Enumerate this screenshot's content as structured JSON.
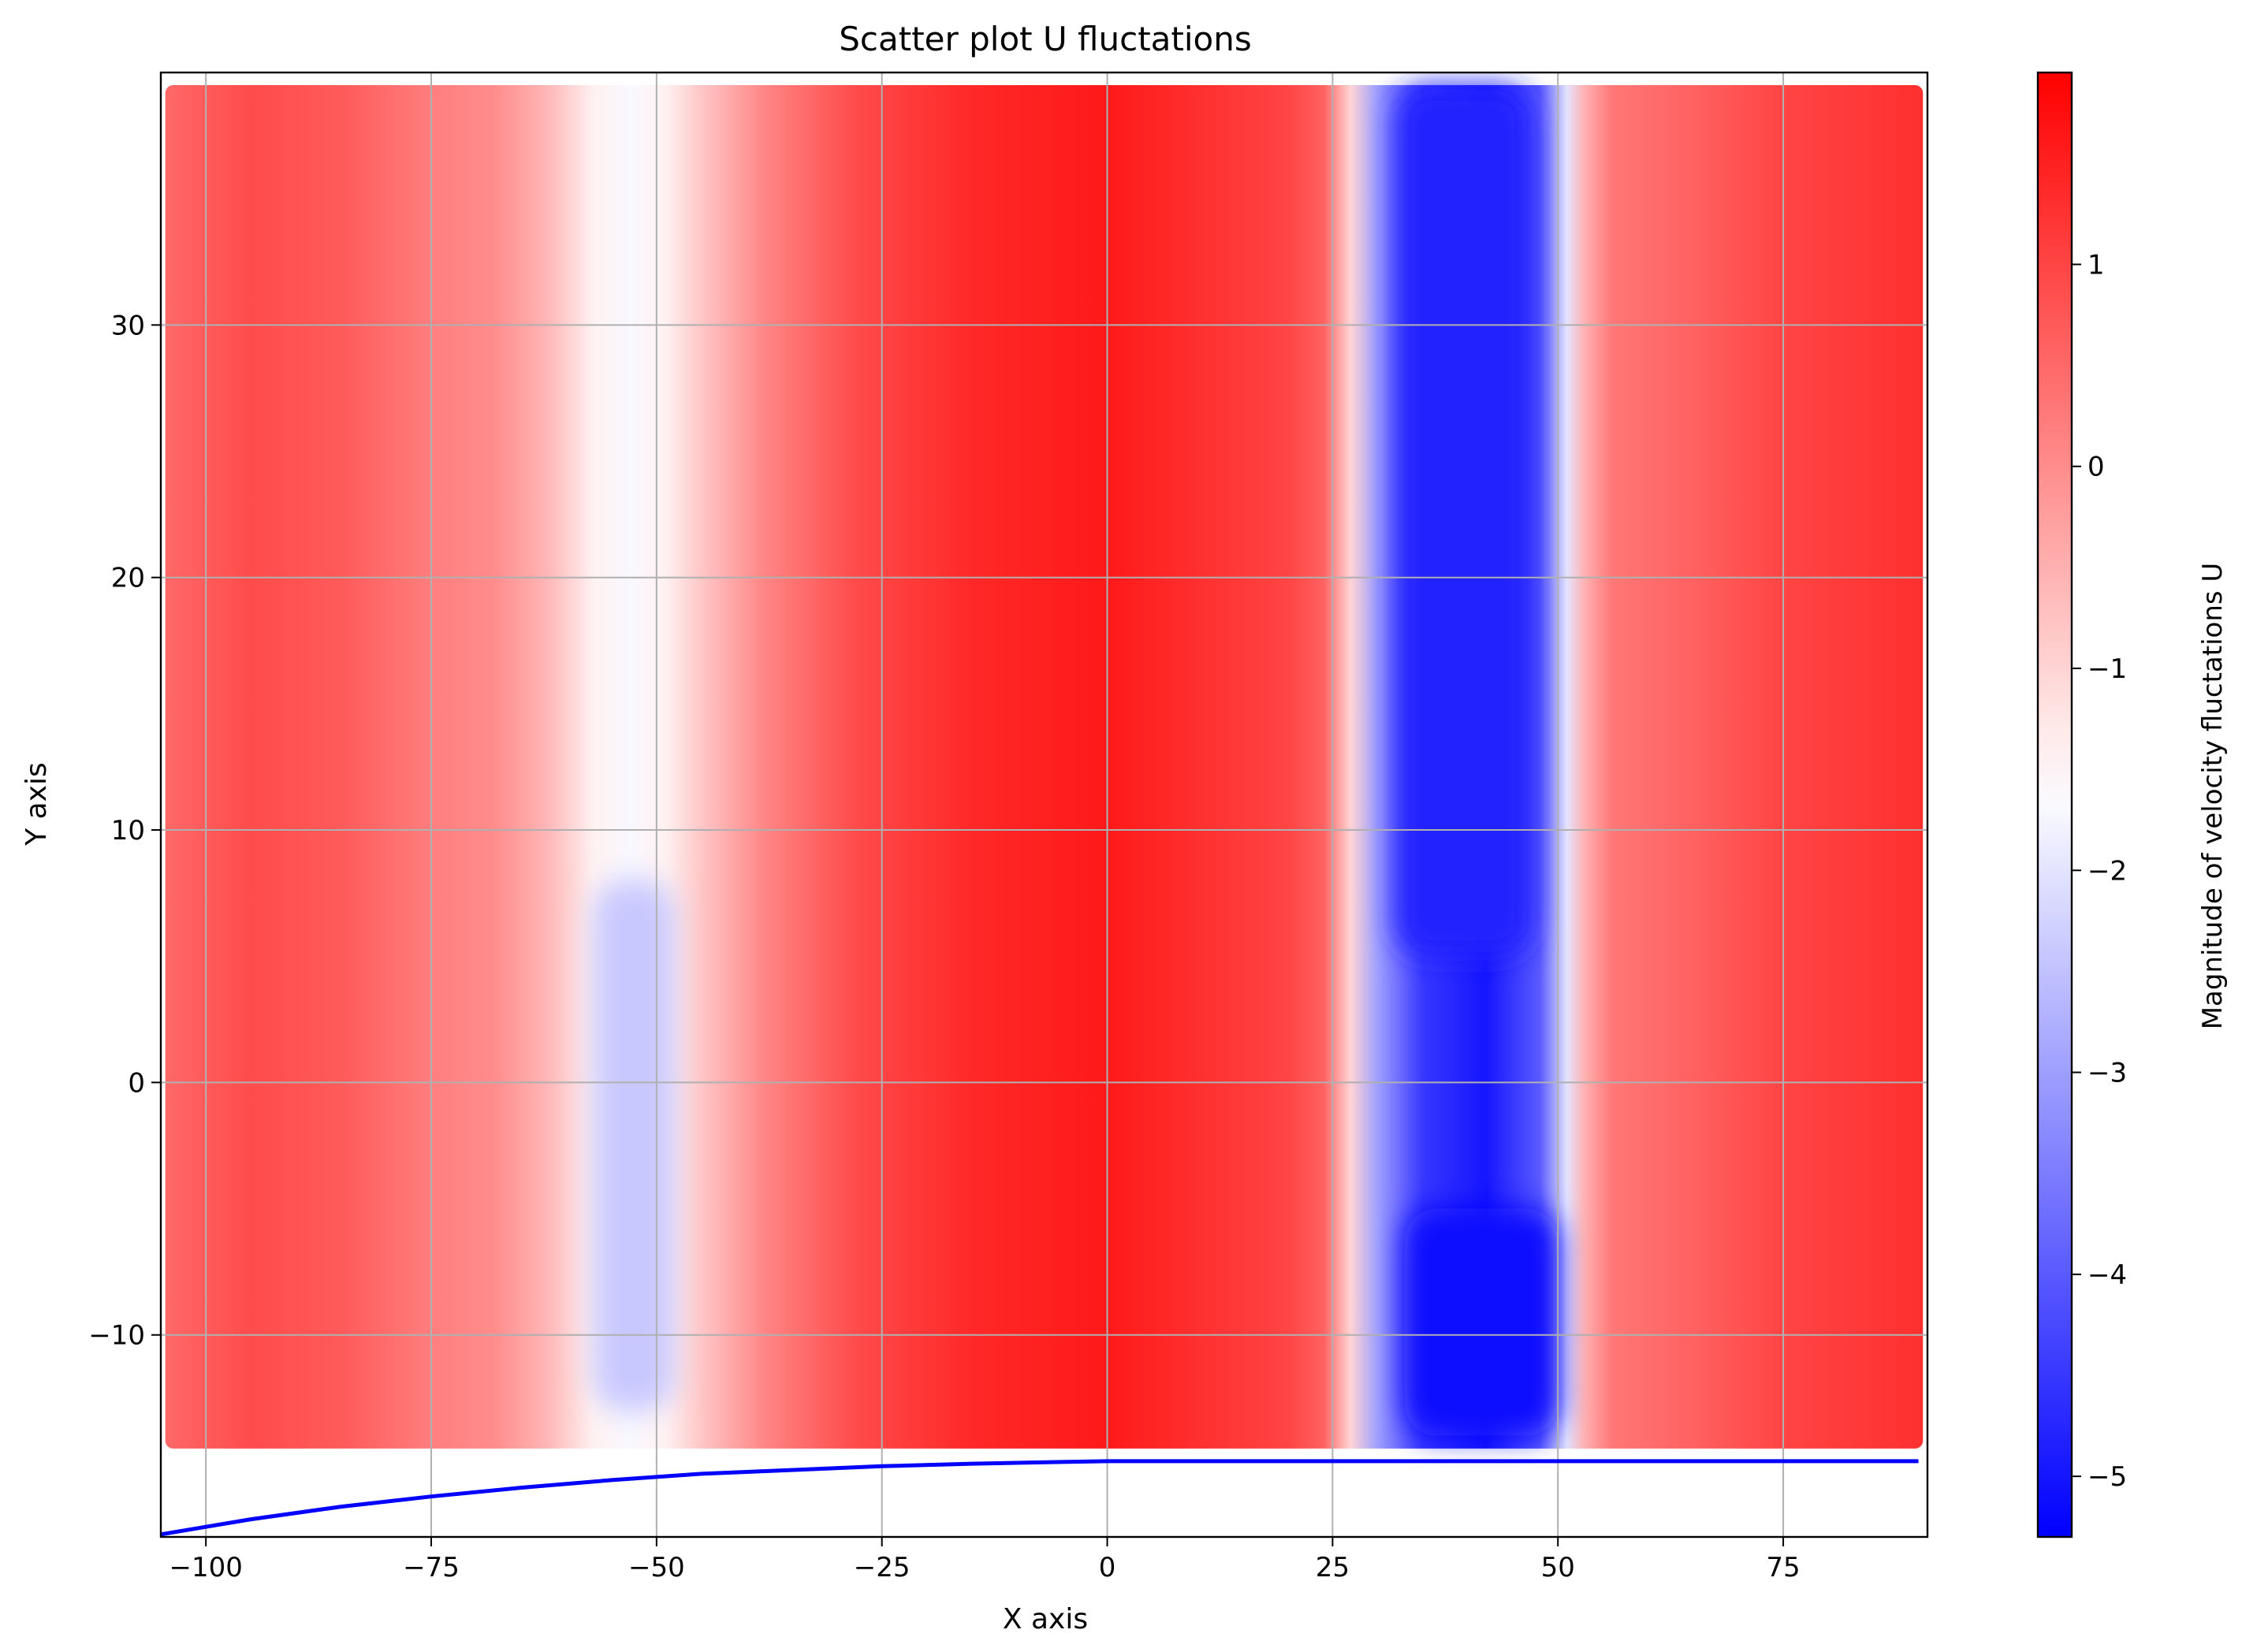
{
  "chart_data": {
    "type": "scatter",
    "title": "Scatter plot U fluctations",
    "xlabel": "X axis",
    "ylabel": "Y axis",
    "xlim": [
      -105,
      91
    ],
    "ylim": [
      -18,
      40
    ],
    "grid": true,
    "xticks": [
      -100,
      -75,
      -50,
      -25,
      0,
      25,
      50,
      75
    ],
    "xtick_labels": [
      "−100",
      "−75",
      "−50",
      "−25",
      "0",
      "25",
      "50",
      "75"
    ],
    "yticks": [
      -10,
      0,
      10,
      20,
      30
    ],
    "ytick_labels": [
      "−10",
      "0",
      "10",
      "20",
      "30"
    ],
    "point_region": {
      "x": [
        -104.5,
        90.5
      ],
      "y": [
        -14.5,
        39.5
      ]
    },
    "colormap": "bwr",
    "colors": {
      "low": "#0000ff",
      "mid": "#ffffff",
      "high": "#ff0000",
      "curve": "#0000ff",
      "grid": "#b0b0b0"
    },
    "colorbar": {
      "label": "Magnitude of velocity fluctations U",
      "range": [
        -5.3,
        1.95
      ],
      "ticks": [
        1,
        0,
        -1,
        -2,
        -3,
        -4,
        -5
      ],
      "tick_labels": [
        "1",
        "0",
        "−1",
        "−2",
        "−3",
        "−4",
        "−5"
      ]
    },
    "value_profile_by_x": [
      {
        "x": -105,
        "u": 0.5
      },
      {
        "x": -95,
        "u": 0.9
      },
      {
        "x": -85,
        "u": 0.7
      },
      {
        "x": -75,
        "u": 0.2
      },
      {
        "x": -68,
        "u": 0.0
      },
      {
        "x": -62,
        "u": -0.6
      },
      {
        "x": -57,
        "u": -1.4
      },
      {
        "x": -53,
        "u": -1.7
      },
      {
        "x": -49,
        "u": -1.4
      },
      {
        "x": -45,
        "u": -0.8
      },
      {
        "x": -38,
        "u": 0.1
      },
      {
        "x": -28,
        "u": 0.9
      },
      {
        "x": -15,
        "u": 1.4
      },
      {
        "x": 0,
        "u": 1.6
      },
      {
        "x": 10,
        "u": 1.3
      },
      {
        "x": 20,
        "u": 1.0
      },
      {
        "x": 24,
        "u": 0.6
      },
      {
        "x": 27,
        "u": -1.0
      },
      {
        "x": 30,
        "u": -3.0
      },
      {
        "x": 35,
        "u": -4.5
      },
      {
        "x": 42,
        "u": -5.0
      },
      {
        "x": 48,
        "u": -4.0
      },
      {
        "x": 51,
        "u": -2.0
      },
      {
        "x": 53,
        "u": -0.5
      },
      {
        "x": 56,
        "u": 0.3
      },
      {
        "x": 65,
        "u": 0.6
      },
      {
        "x": 75,
        "u": 1.0
      },
      {
        "x": 91,
        "u": 1.3
      }
    ],
    "blue_regions": [
      {
        "x": [
          32,
          47
        ],
        "y": [
          5,
          39.5
        ],
        "u": -4.8
      },
      {
        "x": [
          33,
          50
        ],
        "y": [
          -14,
          -5
        ],
        "u": -5.2
      },
      {
        "x": [
          -57,
          -48
        ],
        "y": [
          -13,
          8
        ],
        "u": -2.4
      }
    ],
    "series": [
      {
        "type": "line",
        "color": "#0000ff",
        "x": [
          -105,
          -95,
          -85,
          -75,
          -65,
          -55,
          -45,
          -35,
          -25,
          -15,
          -5,
          0,
          20,
          40,
          60,
          80,
          90
        ],
        "y": [
          -17.9,
          -17.3,
          -16.8,
          -16.4,
          -16.05,
          -15.75,
          -15.5,
          -15.35,
          -15.2,
          -15.1,
          -15.03,
          -15.0,
          -15.0,
          -15.0,
          -15.0,
          -15.0,
          -15.0
        ]
      }
    ]
  }
}
